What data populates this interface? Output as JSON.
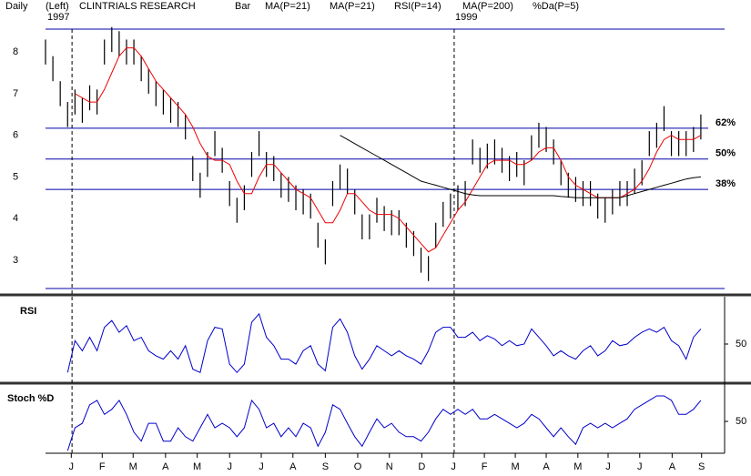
{
  "header": [
    {
      "text": "Daily",
      "color": "#000000"
    },
    {
      "text": "(Left)",
      "color": "#000000"
    },
    {
      "text": "1997",
      "color": "#000000"
    },
    {
      "text": "CLINTRIALS RESEARCH",
      "color": "#000000"
    },
    {
      "text": "Bar",
      "color": "#000000"
    },
    {
      "text": "MA(P=21)",
      "color": "#00cc00"
    },
    {
      "text": "MA(P=21)",
      "color": "#ee0000"
    },
    {
      "text": "RSI(P=14)",
      "color": "#0000cc"
    },
    {
      "text": "MA(P=200)",
      "color": "#000000"
    },
    {
      "text": "1999",
      "color": "#000000"
    },
    {
      "text": "%Da(P=5)",
      "color": "#0000cc"
    }
  ],
  "chart_data": [
    {
      "type": "hilo",
      "color": "#000000",
      "xlim": [
        0,
        90
      ],
      "ylim": [
        2.32,
        8.55
      ],
      "yticks": [
        3,
        4,
        5,
        6,
        7,
        8
      ],
      "vlines": [
        3.6,
        55.5
      ],
      "levels": [
        {
          "value": 6.17,
          "label": "62%"
        },
        {
          "value": 5.43,
          "label": "50%"
        },
        {
          "value": 4.7,
          "label": "38%"
        }
      ],
      "level_color": "#0000aa",
      "high": [
        8.3,
        7.9,
        7.3,
        6.8,
        7.1,
        6.9,
        7.2,
        7.1,
        8.3,
        8.6,
        8.5,
        8.3,
        8.3,
        7.9,
        7.6,
        7.3,
        7.1,
        6.9,
        6.8,
        6.5,
        5.5,
        5.1,
        5.6,
        6.1,
        5.7,
        4.9,
        4.5,
        4.8,
        5.6,
        6.1,
        5.6,
        5.5,
        5.1,
        5.0,
        4.8,
        4.7,
        4.6,
        3.9,
        3.5,
        4.9,
        5.3,
        5.2,
        4.7,
        4.1,
        4.1,
        4.5,
        4.3,
        4.2,
        4.2,
        3.9,
        3.7,
        3.3,
        3.1,
        3.9,
        4.4,
        4.6,
        4.8,
        4.9,
        5.9,
        5.7,
        5.8,
        5.9,
        5.7,
        5.5,
        5.6,
        5.4,
        6.0,
        6.3,
        6.2,
        5.9,
        5.4,
        5.1,
        5.0,
        4.9,
        4.9,
        4.6,
        4.5,
        4.7,
        4.9,
        4.9,
        5.2,
        5.4,
        6.1,
        6.3,
        6.7,
        6.1,
        6.1,
        6.1,
        6.2,
        6.5
      ],
      "low": [
        7.7,
        7.3,
        6.7,
        6.2,
        6.5,
        6.3,
        6.6,
        6.5,
        7.7,
        8.0,
        7.9,
        7.7,
        7.7,
        7.3,
        7.0,
        6.7,
        6.5,
        6.3,
        6.2,
        5.9,
        4.9,
        4.5,
        5.0,
        5.5,
        5.1,
        4.3,
        3.9,
        4.2,
        5.0,
        5.5,
        5.0,
        4.9,
        4.5,
        4.4,
        4.2,
        4.1,
        4.0,
        3.3,
        2.9,
        4.3,
        4.7,
        4.6,
        4.1,
        3.5,
        3.5,
        3.9,
        3.7,
        3.6,
        3.6,
        3.3,
        3.1,
        2.7,
        2.5,
        3.3,
        3.8,
        4.0,
        4.2,
        4.3,
        5.3,
        5.1,
        5.2,
        5.3,
        5.1,
        4.9,
        5.0,
        4.8,
        5.4,
        5.7,
        5.6,
        5.3,
        4.8,
        4.5,
        4.4,
        4.3,
        4.3,
        4.0,
        3.9,
        4.1,
        4.3,
        4.3,
        4.6,
        4.8,
        5.5,
        5.7,
        6.1,
        5.5,
        5.5,
        5.5,
        5.6,
        5.9
      ],
      "lines": [
        {
          "color": "#ee0000",
          "values": [
            null,
            null,
            null,
            null,
            7.0,
            6.9,
            6.8,
            6.8,
            7.1,
            7.5,
            7.9,
            8.1,
            8.1,
            7.9,
            7.6,
            7.3,
            7.1,
            6.9,
            6.7,
            6.5,
            6.2,
            5.8,
            5.5,
            5.4,
            5.4,
            5.3,
            4.9,
            4.6,
            4.6,
            5.0,
            5.3,
            5.3,
            5.1,
            4.9,
            4.7,
            4.6,
            4.5,
            4.2,
            3.9,
            3.9,
            4.2,
            4.6,
            4.6,
            4.4,
            4.2,
            4.1,
            4.1,
            4.1,
            4.0,
            3.8,
            3.6,
            3.4,
            3.2,
            3.3,
            3.6,
            3.9,
            4.2,
            4.4,
            4.7,
            5.0,
            5.3,
            5.4,
            5.4,
            5.4,
            5.3,
            5.3,
            5.4,
            5.6,
            5.7,
            5.7,
            5.4,
            5.0,
            4.8,
            4.7,
            4.6,
            4.5,
            4.5,
            4.5,
            4.5,
            4.6,
            4.7,
            4.9,
            5.2,
            5.6,
            5.9,
            6.0,
            5.9,
            5.9,
            5.9,
            6.0
          ]
        },
        {
          "color": "#000000",
          "values": [
            null,
            null,
            null,
            null,
            null,
            null,
            null,
            null,
            null,
            null,
            null,
            null,
            null,
            null,
            null,
            null,
            null,
            null,
            null,
            null,
            null,
            null,
            null,
            null,
            null,
            null,
            null,
            null,
            null,
            null,
            null,
            null,
            null,
            null,
            null,
            null,
            null,
            null,
            null,
            null,
            6.0,
            5.9,
            5.8,
            5.7,
            5.6,
            5.5,
            5.4,
            5.3,
            5.2,
            5.1,
            5.0,
            4.9,
            4.85,
            4.8,
            4.75,
            4.7,
            4.65,
            4.6,
            4.57,
            4.55,
            4.55,
            4.55,
            4.55,
            4.55,
            4.55,
            4.55,
            4.55,
            4.55,
            4.55,
            4.55,
            4.53,
            4.52,
            4.5,
            4.5,
            4.5,
            4.5,
            4.5,
            4.5,
            4.5,
            4.55,
            4.6,
            4.65,
            4.7,
            4.75,
            4.8,
            4.85,
            4.9,
            4.95,
            4.98,
            5.0
          ]
        }
      ]
    },
    {
      "type": "line",
      "label": "RSI",
      "color": "#0000cc",
      "xlim": [
        0,
        90
      ],
      "ylim": [
        25,
        75
      ],
      "yticks": [
        50
      ],
      "values": [
        null,
        null,
        null,
        33,
        52,
        46,
        54,
        46,
        60,
        64,
        57,
        61,
        52,
        54,
        46,
        43,
        41,
        46,
        41,
        49,
        35,
        33,
        52,
        60,
        59,
        38,
        33,
        38,
        63,
        68,
        54,
        49,
        41,
        41,
        38,
        46,
        49,
        38,
        34,
        60,
        65,
        57,
        43,
        35,
        41,
        49,
        46,
        43,
        46,
        43,
        41,
        38,
        46,
        57,
        60,
        60,
        54,
        54,
        57,
        52,
        55,
        53,
        49,
        52,
        49,
        50,
        59,
        54,
        49,
        43,
        46,
        43,
        41,
        46,
        49,
        43,
        46,
        52,
        49,
        50,
        54,
        57,
        59,
        57,
        60,
        52,
        49,
        41,
        54,
        59
      ]
    },
    {
      "type": "line",
      "label": "Stoch %D",
      "color": "#0000cc",
      "xlim": [
        0,
        90
      ],
      "ylim": [
        0,
        100
      ],
      "yticks": [
        50
      ],
      "values": [
        null,
        null,
        null,
        4,
        40,
        47,
        76,
        83,
        61,
        69,
        83,
        61,
        33,
        19,
        47,
        47,
        19,
        19,
        40,
        26,
        19,
        40,
        61,
        40,
        47,
        40,
        26,
        40,
        83,
        69,
        40,
        47,
        26,
        40,
        26,
        47,
        40,
        11,
        33,
        76,
        69,
        47,
        26,
        11,
        33,
        54,
        40,
        47,
        33,
        26,
        26,
        19,
        33,
        54,
        69,
        61,
        69,
        61,
        69,
        54,
        54,
        61,
        54,
        47,
        40,
        47,
        61,
        54,
        40,
        26,
        40,
        26,
        14,
        40,
        47,
        40,
        47,
        40,
        47,
        54,
        69,
        76,
        83,
        90,
        90,
        83,
        61,
        61,
        69,
        83
      ],
      "xticks": [
        {
          "value": 3.5,
          "label": "J"
        },
        {
          "value": 7.7,
          "label": "F"
        },
        {
          "value": 11.9,
          "label": "M"
        },
        {
          "value": 16.3,
          "label": "A"
        },
        {
          "value": 20.6,
          "label": "M"
        },
        {
          "value": 25.0,
          "label": "J"
        },
        {
          "value": 29.3,
          "label": "J"
        },
        {
          "value": 33.6,
          "label": "A"
        },
        {
          "value": 38.0,
          "label": "S"
        },
        {
          "value": 42.4,
          "label": "O"
        },
        {
          "value": 46.7,
          "label": "N"
        },
        {
          "value": 51.1,
          "label": "D"
        },
        {
          "value": 55.4,
          "label": "J"
        },
        {
          "value": 59.6,
          "label": "F"
        },
        {
          "value": 63.8,
          "label": "M"
        },
        {
          "value": 68.0,
          "label": "A"
        },
        {
          "value": 72.3,
          "label": "M"
        },
        {
          "value": 76.4,
          "label": "J"
        },
        {
          "value": 80.7,
          "label": "J"
        },
        {
          "value": 85.1,
          "label": "A"
        },
        {
          "value": 89.1,
          "label": "S"
        }
      ]
    }
  ]
}
